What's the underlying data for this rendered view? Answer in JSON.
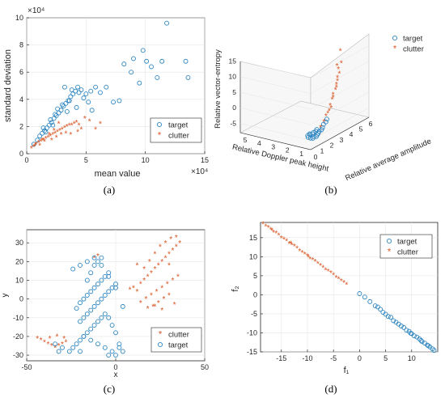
{
  "colors": {
    "target": "#2e86c1",
    "clutter": "#d9531e",
    "axis": "#262626",
    "grid": "#e6e6e6"
  },
  "chart_data": [
    {
      "panel": "a",
      "type": "scatter",
      "caption": "(a)",
      "xlabel": "mean value",
      "ylabel": "standard deviation",
      "x_exponent": "×10⁴",
      "y_exponent": "×10⁴",
      "xlim": [
        0,
        15
      ],
      "ylim": [
        0,
        10
      ],
      "xticks": [
        "0",
        "5",
        "10",
        "15"
      ],
      "yticks": [
        "0",
        "2",
        "4",
        "6",
        "8",
        "10"
      ],
      "legend": {
        "position": "center-right",
        "entries": [
          "target",
          "clutter"
        ]
      },
      "series": [
        {
          "name": "target",
          "marker": "o",
          "x": [
            0.6,
            0.9,
            1.1,
            1.3,
            1.5,
            1.7,
            1.9,
            2.1,
            2.3,
            2.5,
            2.7,
            2.9,
            3.1,
            3.3,
            3.5,
            3.7,
            3.9,
            4.1,
            4.3,
            4.6,
            5.0,
            5.4,
            5.8,
            6.2,
            6.7,
            3.2,
            3.8,
            4.4,
            2.6,
            3.0,
            3.6,
            4.8,
            5.2,
            1.4,
            2.0,
            2.4,
            7.3,
            7.8,
            8.2,
            8.8,
            9.0,
            9.5,
            9.8,
            10.1,
            10.5,
            11.0,
            11.4,
            11.8,
            13.4,
            13.6,
            4.2,
            5.5,
            3.4,
            2.2,
            1.6
          ],
          "y": [
            0.7,
            1.0,
            1.3,
            1.5,
            1.7,
            1.9,
            2.1,
            2.3,
            2.6,
            2.8,
            3.0,
            3.2,
            3.5,
            3.7,
            3.9,
            4.2,
            4.4,
            4.6,
            4.9,
            4.7,
            4.4,
            4.6,
            4.9,
            4.5,
            4.9,
            4.9,
            4.7,
            4.5,
            3.3,
            3.6,
            3.9,
            4.1,
            3.8,
            1.9,
            2.5,
            2.9,
            3.8,
            3.9,
            6.6,
            6.0,
            7.0,
            5.2,
            7.6,
            6.8,
            6.4,
            5.6,
            6.8,
            9.6,
            6.8,
            5.6,
            3.4,
            3.2,
            3.1,
            2.1,
            1.6
          ]
        },
        {
          "name": "clutter",
          "marker": "*",
          "x": [
            0.4,
            0.6,
            0.8,
            1.0,
            1.2,
            1.4,
            1.6,
            1.8,
            2.0,
            2.2,
            2.4,
            2.6,
            2.8,
            3.0,
            3.2,
            3.4,
            3.6,
            3.8,
            4.0,
            4.2,
            4.4,
            4.6,
            4.9,
            5.3,
            5.8,
            6.2,
            1.1,
            1.5,
            2.1,
            2.5,
            2.9,
            3.3,
            3.7,
            4.3,
            0.7,
            1.3,
            1.9,
            2.3,
            2.7
          ],
          "y": [
            0.4,
            0.5,
            0.7,
            0.8,
            0.9,
            1.0,
            1.1,
            1.2,
            1.3,
            1.4,
            1.5,
            1.6,
            1.7,
            1.8,
            1.9,
            2.0,
            2.1,
            2.1,
            2.2,
            2.3,
            2.1,
            1.8,
            2.6,
            2.4,
            1.8,
            2.2,
            0.6,
            0.9,
            1.0,
            1.2,
            1.4,
            1.5,
            1.4,
            1.6,
            0.6,
            1.0,
            1.4,
            1.7,
            2.2
          ]
        }
      ]
    },
    {
      "panel": "b",
      "type": "scatter",
      "caption": "(b)",
      "xlabel": "Relative average amplitude",
      "ylabel": "Relative Doppler peak height",
      "zlabel": "Relative vector-entropy",
      "zticks": [
        "15",
        "10",
        "5",
        "0",
        "-5"
      ],
      "xticks": [
        "1",
        "2",
        "3",
        "4",
        "5",
        "6"
      ],
      "yticks": [
        "0",
        "1",
        "2",
        "3",
        "4",
        "5"
      ],
      "legend": {
        "position": "top-right",
        "entries": [
          "target",
          "clutter"
        ]
      },
      "series": [
        {
          "name": "target",
          "marker": "o",
          "x": [
            0.9,
            1.0,
            1.0,
            1.1,
            1.1,
            1.2,
            1.2,
            1.3,
            1.3,
            1.4,
            1.4,
            1.5,
            1.6,
            1.7,
            1.8,
            1.2,
            1.5,
            1.9,
            2.0,
            2.1
          ],
          "y": [
            0.8,
            0.7,
            0.9,
            0.6,
            0.8,
            0.6,
            0.7,
            0.5,
            0.7,
            0.5,
            0.6,
            0.5,
            0.5,
            0.4,
            0.4,
            0.9,
            0.6,
            0.4,
            0.3,
            0.3
          ],
          "z": [
            -6.5,
            -6.8,
            -6.2,
            -6.9,
            -6.0,
            -6.5,
            -5.8,
            -6.6,
            -5.5,
            -6.2,
            -5.2,
            -5.9,
            -5.5,
            -5.0,
            -4.5,
            -6.0,
            -4.8,
            -3.6,
            -2.9,
            -2.2
          ]
        },
        {
          "name": "clutter",
          "marker": "*",
          "x": [
            1.6,
            1.8,
            2.0,
            2.2,
            2.3,
            2.5,
            2.6,
            2.7,
            2.8,
            2.9,
            3.0,
            2.4,
            2.6,
            2.8,
            3.1,
            3.3,
            2.2,
            2.9,
            3.0,
            3.2
          ],
          "y": [
            0.4,
            0.3,
            0.3,
            0.2,
            0.2,
            0.2,
            0.2,
            0.1,
            0.1,
            0.1,
            0.1,
            0.2,
            0.2,
            0.1,
            0.1,
            0.1,
            0.3,
            0.1,
            0.2,
            0.1
          ],
          "z": [
            -4.0,
            -2.5,
            -1.0,
            0.5,
            2.0,
            3.5,
            5.0,
            6.5,
            8.0,
            10.0,
            12.5,
            1.0,
            4.0,
            7.0,
            11.0,
            14.0,
            -0.5,
            9.0,
            13.5,
            18.0
          ]
        }
      ]
    },
    {
      "panel": "c",
      "type": "scatter",
      "caption": "(c)",
      "xlabel": "x",
      "ylabel": "y",
      "xlim": [
        -50,
        50
      ],
      "ylim": [
        -33,
        37
      ],
      "xticks": [
        "-50",
        "0",
        "50"
      ],
      "yticks": [
        "-30",
        "-20",
        "-10",
        "0",
        "10",
        "20",
        "30"
      ],
      "legend": {
        "position": "bottom-right",
        "entries": [
          "clutter",
          "target"
        ]
      },
      "series": [
        {
          "name": "clutter",
          "marker": "*",
          "x": [
            8,
            10,
            12,
            14,
            16,
            18,
            20,
            22,
            24,
            26,
            28,
            30,
            32,
            34,
            36,
            14,
            17,
            20,
            23,
            26,
            29,
            32,
            35,
            16,
            19,
            22,
            25,
            28,
            31,
            34,
            18,
            21,
            24,
            27,
            30,
            33,
            12,
            22,
            26,
            30,
            -44,
            -42,
            -40,
            -38,
            -36,
            -34,
            -32,
            -30,
            -28,
            -37,
            -33,
            -29,
            -12,
            -10
          ],
          "y": [
            5,
            6,
            4,
            8,
            10,
            12,
            14,
            16,
            18,
            20,
            22,
            24,
            26,
            28,
            30,
            -2,
            0,
            2,
            4,
            6,
            8,
            10,
            12,
            16,
            20,
            24,
            28,
            30,
            32,
            33,
            -5,
            -4,
            -2,
            0,
            2,
            -3,
            18,
            -4,
            -6,
            18,
            -21,
            -22,
            -23,
            -24,
            -25,
            -26,
            -25,
            -24,
            -23,
            -21,
            -20,
            -21,
            22,
            23
          ]
        },
        {
          "name": "target",
          "marker": "o",
          "x": [
            -26,
            -24,
            -22,
            -20,
            -18,
            -16,
            -14,
            -12,
            -10,
            -8,
            -6,
            -4,
            -2,
            0,
            2,
            4,
            -22,
            -20,
            -18,
            -16,
            -14,
            -12,
            -10,
            -8,
            -6,
            -4,
            -20,
            -18,
            -16,
            -14,
            -12,
            -10,
            -8,
            -6,
            -4,
            -2,
            0,
            -24,
            -20,
            -16,
            -12,
            -8,
            -4,
            0,
            4,
            -18,
            -14,
            -10,
            -6,
            -2,
            2,
            -16,
            -14,
            -12,
            -10,
            -8,
            -20,
            -4,
            0,
            -30,
            -32,
            -34
          ],
          "y": [
            -28,
            -26,
            -24,
            -22,
            -20,
            -18,
            -16,
            -14,
            -12,
            -10,
            -8,
            -10,
            -14,
            -18,
            -24,
            -28,
            -5,
            -2,
            0,
            2,
            4,
            6,
            8,
            10,
            12,
            14,
            -12,
            -10,
            -8,
            -6,
            -4,
            -2,
            0,
            2,
            4,
            6,
            8,
            16,
            18,
            20,
            22,
            18,
            12,
            6,
            -4,
            -20,
            -22,
            -24,
            -26,
            -28,
            -26,
            10,
            14,
            18,
            20,
            22,
            -28,
            -30,
            -30,
            -26,
            -28,
            -24
          ]
        }
      ]
    },
    {
      "panel": "d",
      "type": "scatter",
      "caption": "(d)",
      "xlabel": "f₁",
      "ylabel": "f₂",
      "xlim": [
        -19,
        15
      ],
      "ylim": [
        -15,
        19
      ],
      "xticks": [
        "-15",
        "-10",
        "-5",
        "0",
        "5",
        "10"
      ],
      "yticks": [
        "15",
        "10",
        "5",
        "0",
        "-5",
        "-10",
        "-15"
      ],
      "legend": {
        "position": "top-right",
        "entries": [
          "target",
          "clutter"
        ]
      },
      "series": [
        {
          "name": "target",
          "marker": "o",
          "x": [
            0.0,
            1.0,
            2.0,
            3.0,
            4.0,
            5.0,
            5.5,
            6.0,
            6.5,
            7.0,
            7.5,
            8.0,
            8.5,
            9.0,
            9.5,
            10.0,
            10.5,
            11.0,
            11.5,
            12.0,
            12.5,
            13.0,
            13.5,
            14.0,
            14.3,
            3.5,
            4.5,
            9.8,
            11.8,
            13.2
          ],
          "y": [
            0.3,
            -0.6,
            -1.8,
            -2.9,
            -3.8,
            -5.1,
            -5.7,
            -5.9,
            -6.8,
            -7.2,
            -7.7,
            -8.2,
            -8.6,
            -9.3,
            -9.6,
            -10.2,
            -10.8,
            -11.1,
            -11.6,
            -12.3,
            -12.7,
            -13.2,
            -13.7,
            -14.2,
            -14.6,
            -3.2,
            -4.6,
            -10.1,
            -12.0,
            -13.4
          ]
        },
        {
          "name": "clutter",
          "marker": "*",
          "x": [
            -18.5,
            -18.0,
            -17.5,
            -17.0,
            -16.5,
            -16.0,
            -15.5,
            -15.0,
            -14.5,
            -14.0,
            -13.5,
            -13.0,
            -12.5,
            -12.0,
            -11.5,
            -11.0,
            -10.5,
            -10.0,
            -9.5,
            -9.0,
            -8.5,
            -8.0,
            -7.5,
            -7.0,
            -6.5,
            -6.0,
            -5.5,
            -5.0,
            -4.5,
            -4.0,
            -3.5,
            -3.0,
            -2.5,
            -16.8,
            -13.2,
            -9.8
          ],
          "y": [
            18.6,
            18.0,
            17.6,
            17.1,
            16.4,
            16.1,
            15.6,
            14.9,
            14.6,
            14.1,
            13.4,
            13.1,
            12.7,
            12.2,
            11.5,
            11.1,
            10.6,
            10.2,
            9.4,
            9.1,
            8.7,
            8.2,
            7.6,
            7.1,
            6.5,
            6.2,
            5.7,
            5.2,
            4.5,
            4.1,
            3.6,
            3.2,
            2.7,
            16.9,
            13.5,
            9.9
          ]
        }
      ]
    }
  ]
}
